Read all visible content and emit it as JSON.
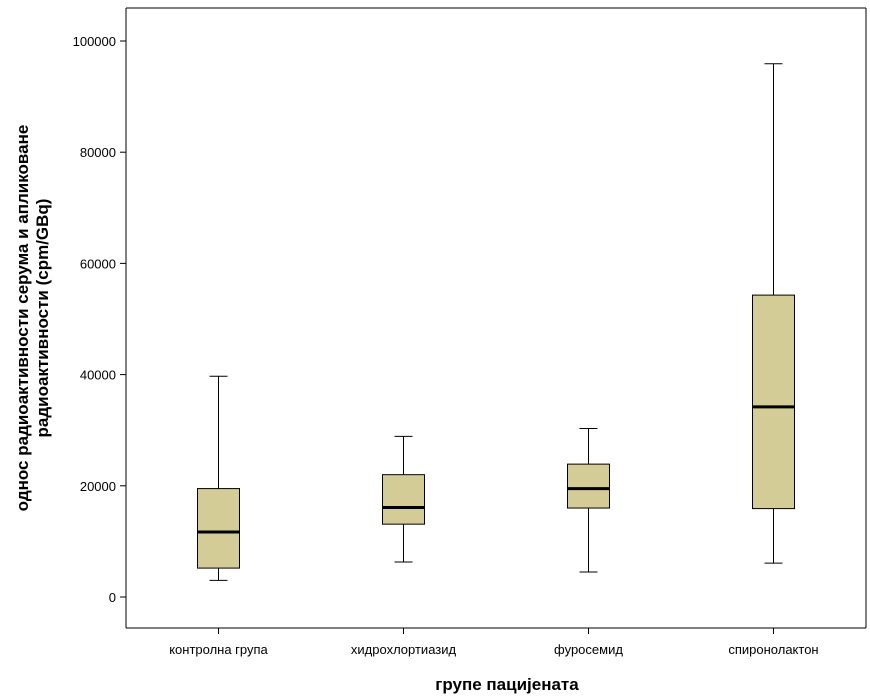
{
  "chart_data": {
    "type": "boxplot",
    "xlabel": "групе пацијената",
    "ylabel_line1": "однос радиоактивности серума и апликоване",
    "ylabel_line2": "радиоактивности (cpm/GBq)",
    "ylim": [
      -5000,
      105000
    ],
    "yticks": [
      0,
      20000,
      40000,
      60000,
      80000,
      100000
    ],
    "ytick_labels": [
      "0",
      "20000",
      "40000",
      "60000",
      "80000",
      "100000"
    ],
    "grid": false,
    "legend": "none",
    "box_color": "#d4cc96",
    "categories": [
      "контролна група",
      "хидрохлортиазид",
      "фуросемид",
      "спиронолактон"
    ],
    "boxes": [
      {
        "category": "контролна група",
        "whisker_low": 3000,
        "q1": 5200,
        "median": 11700,
        "q3": 19500,
        "whisker_high": 39700
      },
      {
        "category": "хидрохлортиазид",
        "whisker_low": 6300,
        "q1": 13100,
        "median": 16100,
        "q3": 22000,
        "whisker_high": 28900
      },
      {
        "category": "фуросемид",
        "whisker_low": 4500,
        "q1": 16000,
        "median": 19500,
        "q3": 23900,
        "whisker_high": 30300
      },
      {
        "category": "спиронолактон",
        "whisker_low": 6100,
        "q1": 15900,
        "median": 34200,
        "q3": 54300,
        "whisker_high": 95900
      }
    ]
  }
}
